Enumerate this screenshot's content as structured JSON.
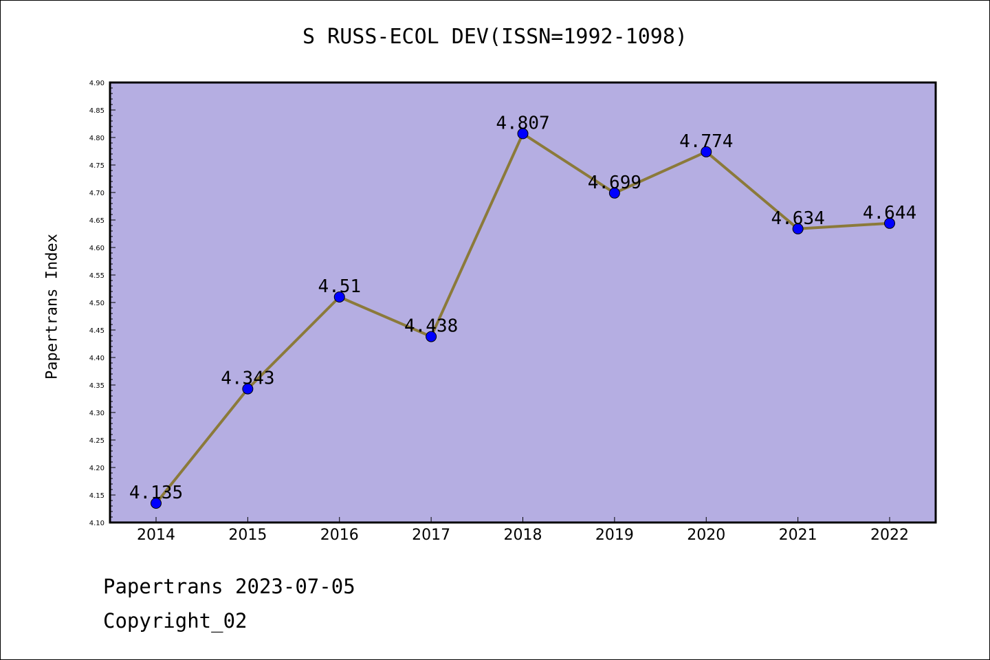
{
  "chart_data": {
    "type": "line",
    "title": "S RUSS-ECOL DEV(ISSN=1992-1098)",
    "xlabel": "",
    "ylabel": "Papertrans Index",
    "categories": [
      "2014",
      "2015",
      "2016",
      "2017",
      "2018",
      "2019",
      "2020",
      "2021",
      "2022"
    ],
    "series": [
      {
        "values": [
          4.135,
          4.343,
          4.51,
          4.438,
          4.807,
          4.699,
          4.774,
          4.634,
          4.644
        ],
        "labels": [
          "4.135",
          "4.343",
          "4.51",
          "4.438",
          "4.807",
          "4.699",
          "4.774",
          "4.634",
          "4.644"
        ]
      }
    ],
    "ylim": [
      4.1,
      4.9
    ],
    "yticks": [
      "4.10",
      "4.15",
      "4.20",
      "4.25",
      "4.30",
      "4.35",
      "4.40",
      "4.45",
      "4.50",
      "4.55",
      "4.60",
      "4.65",
      "4.70",
      "4.75",
      "4.80",
      "4.85",
      "4.90"
    ],
    "grid": false,
    "legend": "none",
    "colors": {
      "plot_background": "#b5aee2",
      "line": "#8b7a3a",
      "marker": "#0000ff",
      "axis": "#000000"
    }
  },
  "footer": {
    "line1": "Papertrans 2023-07-05",
    "line2": "Copyright_02"
  }
}
